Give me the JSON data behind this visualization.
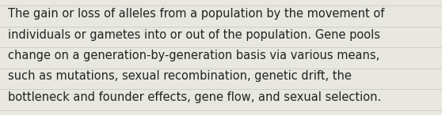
{
  "text_lines": [
    "The gain or loss of alleles from a population by the movement of",
    "individuals or gametes into or out of the population. Gene pools",
    "change on a generation-by-generation basis via various means,",
    "such as mutations, sexual recombination, genetic drift, the",
    "bottleneck and founder effects, gene flow, and sexual selection."
  ],
  "background_color": "#e8e8e0",
  "text_color": "#222222",
  "font_size": 10.5,
  "line_color": "#ccccbf",
  "fig_width": 5.58,
  "fig_height": 1.46,
  "dpi": 100
}
